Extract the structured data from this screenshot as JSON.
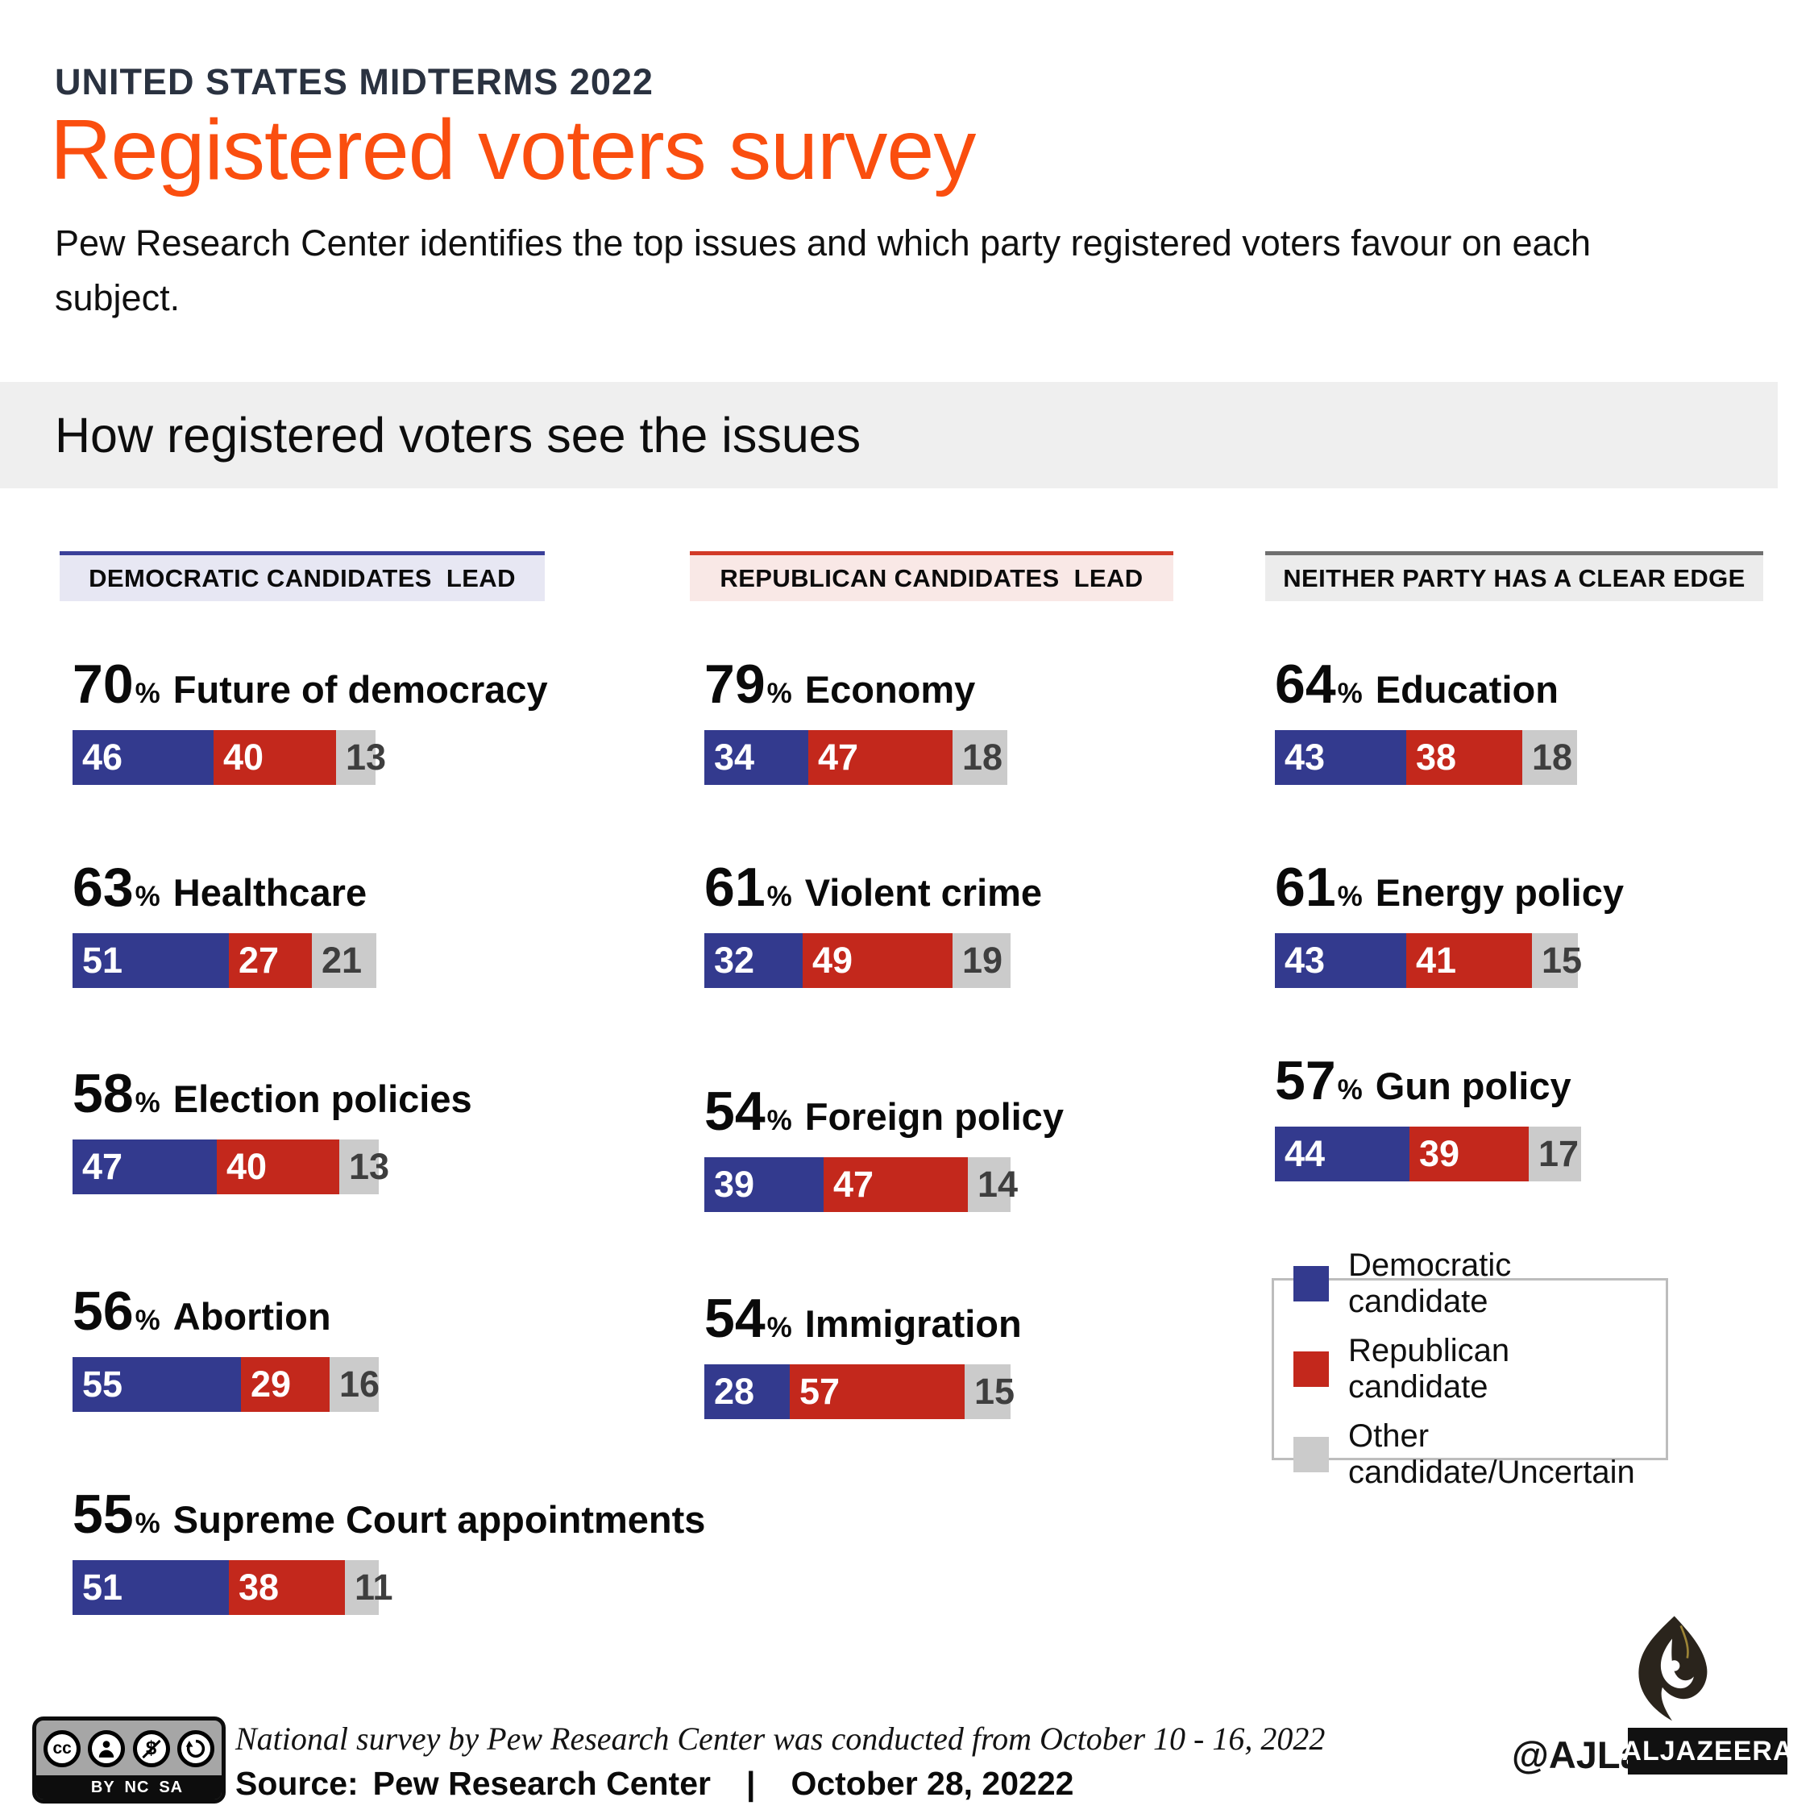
{
  "page": {
    "kicker": "UNITED STATES MIDTERMS 2022",
    "title": "Registered voters survey",
    "description": "Pew Research Center identifies the top issues and which party registered voters favour on each subject.",
    "section_heading": "How registered voters see the issues"
  },
  "colors": {
    "democrat": "#333a8e",
    "republican": "#c3281c",
    "other": "#cbcbcb",
    "accent_orange": "#fa4e0f",
    "kicker_navy": "#2a3240",
    "dem_header_bg": "#e7e7f3",
    "dem_header_border": "#3a3f99",
    "rep_header_bg": "#f9e8e6",
    "rep_header_border": "#d23a28",
    "neither_header_bg": "#ececec",
    "neither_header_border": "#6f6f6f"
  },
  "legend": {
    "items": [
      {
        "label": "Democratic candidate",
        "color": "#333a8e"
      },
      {
        "label": "Republican candidate",
        "color": "#c3281c"
      },
      {
        "label": "Other candidate/Uncertain",
        "color": "#cbcbcb"
      }
    ]
  },
  "footer": {
    "license_badge": {
      "cc": "cc",
      "labels": [
        "BY",
        "NC",
        "SA"
      ]
    },
    "note": "National survey by Pew Research Center was conducted from October 10 - 16, 2022",
    "source_prefix": "Source:",
    "source": "Pew Research Center",
    "separator": "|",
    "date": "October 28, 20222",
    "credit": "@AJLabs",
    "brand": "ALJAZEERA"
  },
  "chart_data": {
    "type": "bar",
    "orientation": "horizontal-stacked",
    "unit": "%",
    "series_labels": [
      "Democratic candidate",
      "Republican candidate",
      "Other candidate/Uncertain"
    ],
    "columns": [
      {
        "header": "DEMOCRATIC CANDIDATES  LEAD",
        "theme": "dem",
        "items": [
          {
            "pct": 70,
            "issue": "Future of democracy",
            "values": [
              46,
              40,
              13
            ]
          },
          {
            "pct": 63,
            "issue": "Healthcare",
            "values": [
              51,
              27,
              21
            ]
          },
          {
            "pct": 58,
            "issue": "Election policies",
            "values": [
              47,
              40,
              13
            ]
          },
          {
            "pct": 56,
            "issue": "Abortion",
            "values": [
              55,
              29,
              16
            ]
          },
          {
            "pct": 55,
            "issue": "Supreme Court appointments",
            "values": [
              51,
              38,
              11
            ]
          }
        ]
      },
      {
        "header": "REPUBLICAN CANDIDATES  LEAD",
        "theme": "rep",
        "items": [
          {
            "pct": 79,
            "issue": "Economy",
            "values": [
              34,
              47,
              18
            ]
          },
          {
            "pct": 61,
            "issue": "Violent crime",
            "values": [
              32,
              49,
              19
            ]
          },
          {
            "pct": 54,
            "issue": "Foreign policy",
            "values": [
              39,
              47,
              14
            ]
          },
          {
            "pct": 54,
            "issue": "Immigration",
            "values": [
              28,
              57,
              15
            ]
          }
        ]
      },
      {
        "header": "NEITHER PARTY HAS A CLEAR EDGE",
        "theme": "neither",
        "items": [
          {
            "pct": 64,
            "issue": "Education",
            "values": [
              43,
              38,
              18
            ]
          },
          {
            "pct": 61,
            "issue": "Energy policy",
            "values": [
              43,
              41,
              15
            ]
          },
          {
            "pct": 57,
            "issue": "Gun policy",
            "values": [
              44,
              39,
              17
            ]
          }
        ]
      }
    ]
  }
}
